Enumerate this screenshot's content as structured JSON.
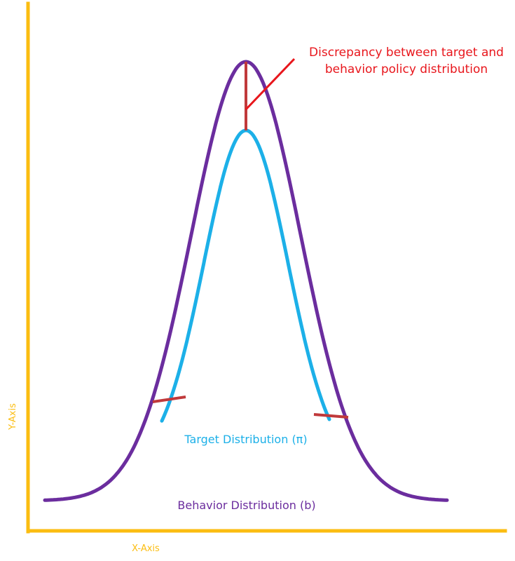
{
  "labels": {
    "x_axis": "X-Axis",
    "y_axis": "Y-Axis",
    "target": "Target Distribution (π)",
    "behavior": "Behavior Distribution (b)",
    "annotation_line1": "Discrepancy between target and",
    "annotation_line2": "behavior policy distribution"
  },
  "colors": {
    "axis": "#fbbd11",
    "target_curve": "#1cb0e8",
    "behavior_curve": "#6b2d9e",
    "discrepancy": "#c0393b",
    "annotation": "#e8161c",
    "target_label": "#1cb0e8",
    "behavior_label": "#6b2d9e",
    "axis_label": "#fbbd11"
  }
}
